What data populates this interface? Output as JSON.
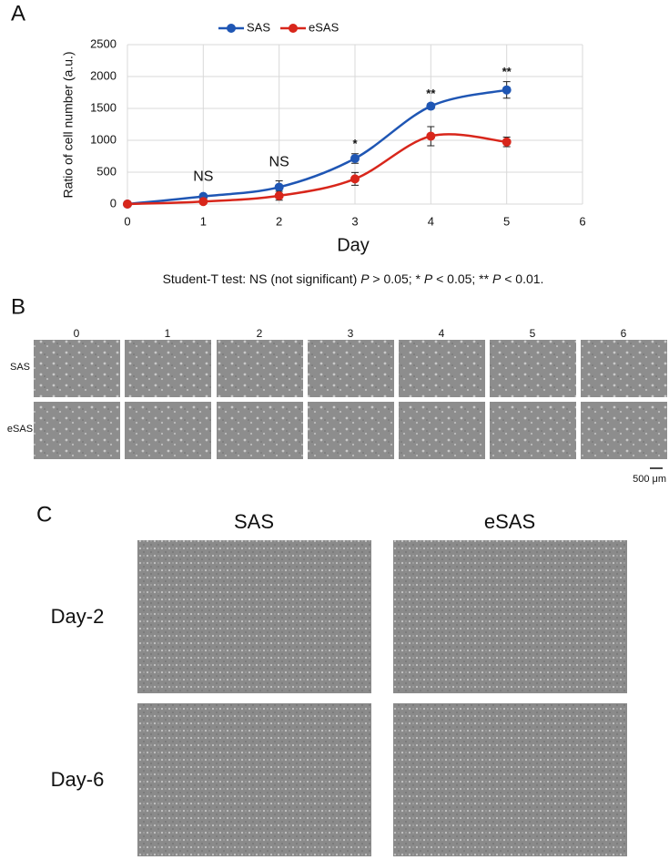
{
  "panel_labels": [
    "A",
    "B",
    "C"
  ],
  "chart_data": {
    "type": "line",
    "x_label": "Day",
    "y_label": "Ratio of cell number (a.u.)",
    "x": [
      0,
      1,
      2,
      3,
      4,
      5
    ],
    "series": [
      {
        "name": "SAS",
        "color": "#1f56b4",
        "values": [
          0,
          120,
          265,
          715,
          1535,
          1790
        ],
        "errors": [
          0,
          20,
          100,
          75,
          40,
          130
        ]
      },
      {
        "name": "eSAS",
        "color": "#d8261b",
        "values": [
          0,
          40,
          130,
          395,
          1065,
          975
        ],
        "errors": [
          0,
          20,
          70,
          100,
          150,
          75
        ]
      }
    ],
    "significance": [
      null,
      "NS",
      "NS",
      "*",
      "**",
      "**"
    ],
    "xlim": [
      0,
      6
    ],
    "xticks": [
      0,
      1,
      2,
      3,
      4,
      5,
      6
    ],
    "ylim": [
      0,
      2500
    ],
    "yticks": [
      0,
      500,
      1000,
      1500,
      2000,
      2500
    ],
    "grid": true,
    "legend": "top"
  },
  "footnote": [
    "Student-T test: NS (not significant) ",
    "P",
    " > 0.05; * ",
    "P",
    " < 0.05; ** ",
    "P",
    " < 0.01."
  ],
  "panel_b": {
    "columns": [
      "0",
      "1",
      "2",
      "3",
      "4",
      "5",
      "6"
    ],
    "rows": [
      "SAS",
      "eSAS"
    ],
    "scale_bar": "500 μm"
  },
  "panel_c": {
    "columns": [
      "SAS",
      "eSAS"
    ],
    "rows": [
      "Day-2",
      "Day-6"
    ]
  }
}
